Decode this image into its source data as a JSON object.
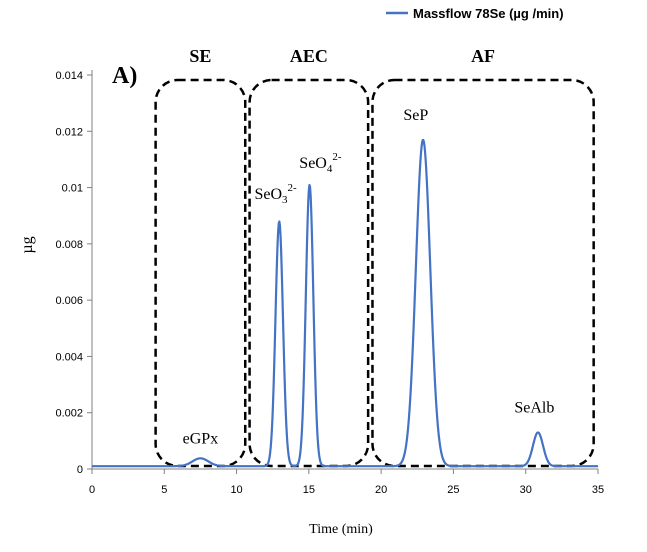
{
  "chart_data": {
    "type": "line",
    "panel_label": "A)",
    "xlabel": "Time (min)",
    "ylabel": "µg",
    "xlim": [
      0,
      35
    ],
    "ylim": [
      0,
      0.014
    ],
    "x_ticks": [
      0,
      5,
      10,
      15,
      20,
      25,
      30,
      35
    ],
    "y_ticks": [
      0,
      0.002,
      0.004,
      0.006,
      0.008,
      0.01,
      0.012,
      0.014
    ],
    "y_tick_labels": [
      "0",
      "0.002",
      "0.004",
      "0.006",
      "0.008",
      "0.01",
      "0.012",
      "0.014"
    ],
    "legend": {
      "position": "top-right",
      "entries": [
        "Massflow 78Se (µg /min)"
      ]
    },
    "color": "#4472c4",
    "series": [
      {
        "name": "Massflow 78Se (µg /min)",
        "baseline": 0.0001,
        "peaks": [
          {
            "center": 7.5,
            "height": 0.00028,
            "width": 0.55
          },
          {
            "center": 12.95,
            "height": 0.0087,
            "width": 0.26
          },
          {
            "center": 15.05,
            "height": 0.01,
            "width": 0.26
          },
          {
            "center": 22.9,
            "height": 0.0116,
            "width": 0.5
          },
          {
            "center": 30.85,
            "height": 0.0012,
            "width": 0.35
          }
        ]
      }
    ],
    "regions": [
      {
        "label": "SE",
        "x_start": 4.4,
        "x_end": 10.6
      },
      {
        "label": "AEC",
        "x_start": 10.9,
        "x_end": 19.1
      },
      {
        "label": "AF",
        "x_start": 19.4,
        "x_end": 34.7
      }
    ],
    "peak_labels": [
      {
        "text": "eGPx",
        "x": 7.5,
        "y": 0.0009
      },
      {
        "text": "SeO3",
        "super": "2-",
        "x": 12.7,
        "y": 0.0096
      },
      {
        "text": "SeO4",
        "super": "2-",
        "x": 15.8,
        "y": 0.0107
      },
      {
        "text": "SeP",
        "x": 22.4,
        "y": 0.0124
      },
      {
        "text": "SeAlb",
        "x": 30.6,
        "y": 0.002
      }
    ]
  }
}
